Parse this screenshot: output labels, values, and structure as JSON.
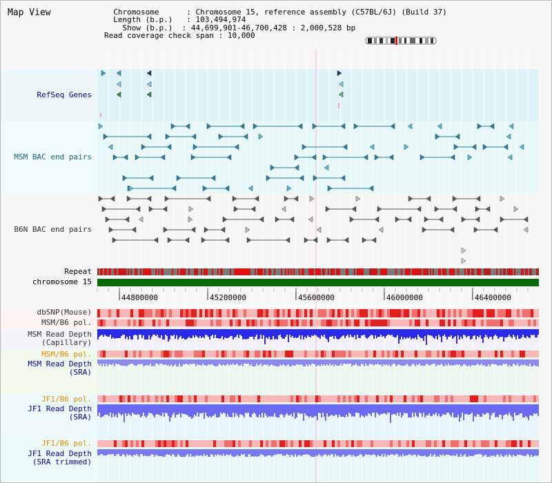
{
  "title": "Map View",
  "info": {
    "chromosome_key": "Chromosome",
    "chromosome_value": "Chromosome 15, reference assembly (C57BL/6J) (Build 37)",
    "length_key": "Length (b.p.)",
    "length_value": "103,494,974",
    "show_key": "Show (b.p.)",
    "show_value": "44,699,901-46,700,428 : 2,000,528 bp",
    "coverage_key": "Read coverage check span",
    "coverage_value": "10,000"
  },
  "tracks": {
    "refseq": "RefSeq Genes",
    "msm_bac": "MSM BAC end pairs",
    "b6n_bac": "B6N BAC end pairs",
    "repeat": "Repeat",
    "chromosome": "chromosome 15",
    "dbsnp": "dbSNP(Mouse)",
    "msm_b6_pol_1": "MSM/B6 pol.",
    "msm_depth_cap_1": "MSM Read Depth",
    "msm_depth_cap_2": "(Capillary)",
    "msm_b6_pol_2": "MSM/B6 pol.",
    "msm_depth_sra_1": "MSM Read Depth",
    "msm_depth_sra_2": "(SRA)",
    "jf1_b6_pol_1": "JF1/B6 pol.",
    "jf1_depth_sra_1": "JF1 Read Depth",
    "jf1_depth_sra_2": "(SRA)",
    "jf1_b6_pol_2": "JF1/B6 pol.",
    "jf1_depth_trim_1": "JF1 Read Depth",
    "jf1_depth_trim_2": "(SRA trimmed)"
  },
  "axis": {
    "ticks": [
      "44800000",
      "45200000",
      "45600000",
      "46000000",
      "46400000"
    ],
    "tick_values": [
      44800000,
      45200000,
      45600000,
      46000000,
      46400000
    ],
    "range": [
      44699901,
      46700428
    ]
  },
  "colors": {
    "refseq_label": "#000080",
    "bac_label_msm": "#1a5f7a",
    "bac_label_b6n": "#303030",
    "pol_orange": "#e08a00",
    "depth_blue": "#000090",
    "repeat_red": "#e01010",
    "chrom_green": "#0a6a0a",
    "depth_bar": "#2222ee",
    "depth_bar_light": "#8080f0"
  }
}
